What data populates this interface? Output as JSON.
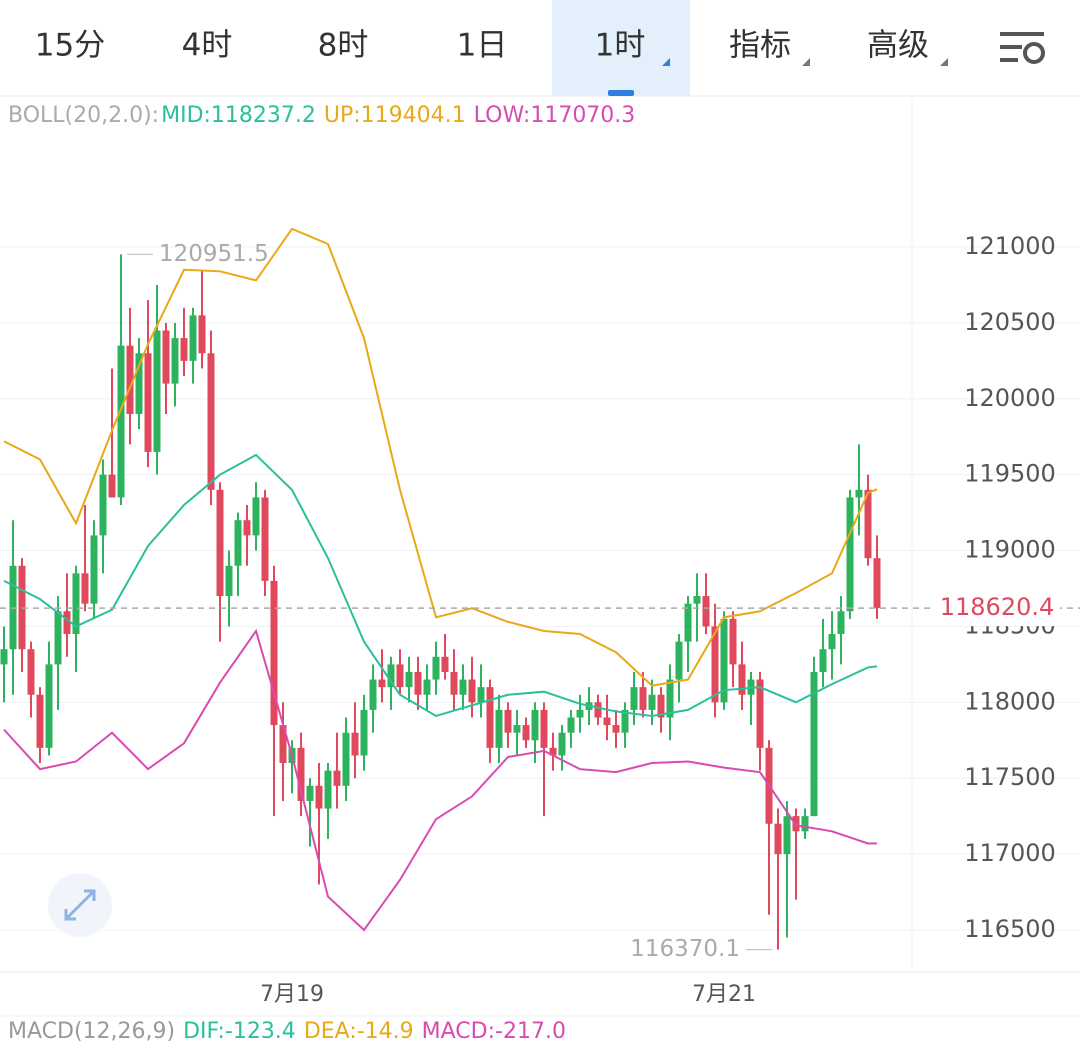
{
  "tabs": [
    {
      "label": "15分"
    },
    {
      "label": "4时"
    },
    {
      "label": "8时"
    },
    {
      "label": "1日"
    },
    {
      "label": "1时"
    },
    {
      "label": "指标"
    },
    {
      "label": "高级"
    }
  ],
  "active_tab": 4,
  "chart_data": {
    "type": "candlestick",
    "indicator_label": "BOLL(20,2.0):",
    "up_color": "#2db35d",
    "down_color": "#e0485b",
    "categories": [
      null,
      null,
      null,
      null,
      null,
      null,
      null,
      null,
      null,
      null,
      null,
      null,
      null,
      null,
      null,
      null,
      null,
      null,
      null,
      null,
      null,
      null,
      null,
      null,
      null,
      null,
      null,
      null,
      null,
      null,
      null,
      null,
      "7月19",
      null,
      null,
      null,
      null,
      null,
      null,
      null,
      null,
      null,
      null,
      null,
      null,
      null,
      null,
      null,
      null,
      null,
      null,
      null,
      null,
      null,
      null,
      null,
      null,
      null,
      null,
      null,
      null,
      null,
      null,
      null,
      null,
      null,
      null,
      null,
      null,
      null,
      null,
      null,
      null,
      null,
      null,
      null,
      null,
      null,
      null,
      null,
      "7月21",
      null,
      null,
      null,
      null,
      null,
      null,
      null,
      null,
      null,
      null,
      null,
      null,
      null,
      null,
      null,
      null,
      null
    ],
    "open": [
      118250,
      118350,
      118900,
      118350,
      118050,
      117700,
      118250,
      118600,
      118450,
      118850,
      118650,
      119100,
      119500,
      119350,
      120350,
      119900,
      120300,
      119650,
      120450,
      120100,
      120400,
      120250,
      120550,
      120300,
      119400,
      118700,
      118900,
      119200,
      119100,
      119350,
      118800,
      117850,
      117600,
      117700,
      117350,
      117450,
      117300,
      117550,
      117450,
      117800,
      117650,
      117950,
      118150,
      118100,
      118250,
      118100,
      118200,
      118050,
      118150,
      118300,
      118200,
      118050,
      118150,
      118000,
      118100,
      117700,
      117950,
      117800,
      117850,
      117750,
      117950,
      117700,
      117650,
      117800,
      117900,
      117950,
      118000,
      117900,
      117850,
      117800,
      117950,
      118100,
      117950,
      118050,
      117900,
      118150,
      118400,
      118650,
      118700,
      118500,
      118000,
      118550,
      118250,
      118050,
      118150,
      117700,
      117200,
      117000,
      117250,
      117150,
      117250,
      118200,
      118350,
      118450,
      118600,
      119350,
      119400,
      118950
    ],
    "high": [
      118500,
      119200,
      118950,
      118400,
      118100,
      118400,
      118700,
      118850,
      118900,
      119300,
      119200,
      119600,
      120200,
      120951.5,
      120600,
      120400,
      120650,
      120750,
      120500,
      120500,
      120600,
      120600,
      120850,
      120450,
      119450,
      119000,
      119250,
      119300,
      119450,
      119400,
      118900,
      118000,
      117750,
      117800,
      117500,
      117600,
      117600,
      117800,
      117900,
      118000,
      118050,
      118250,
      118350,
      118300,
      118350,
      118300,
      118300,
      118250,
      118400,
      118450,
      118350,
      118250,
      118300,
      118250,
      118150,
      118050,
      118000,
      117950,
      117900,
      118000,
      118000,
      117800,
      117850,
      117950,
      118050,
      118100,
      118050,
      118050,
      117950,
      118000,
      118200,
      118200,
      118150,
      118100,
      118250,
      118450,
      118700,
      118850,
      118850,
      118650,
      118600,
      118600,
      118400,
      118200,
      118200,
      117750,
      117300,
      117350,
      117300,
      117300,
      118300,
      118550,
      118600,
      118700,
      119400,
      119700,
      119500,
      119100
    ],
    "low": [
      118000,
      118050,
      118200,
      117900,
      117600,
      117650,
      117950,
      118300,
      118200,
      118600,
      118550,
      118850,
      119350,
      119300,
      119700,
      119800,
      119550,
      119500,
      119900,
      119950,
      120150,
      120100,
      120200,
      119300,
      118400,
      118500,
      118700,
      118900,
      119000,
      118700,
      117250,
      117350,
      117400,
      117250,
      117050,
      116800,
      117100,
      117300,
      117350,
      117500,
      117550,
      117800,
      118000,
      117950,
      118050,
      118000,
      117950,
      117950,
      118050,
      118150,
      117950,
      117950,
      117900,
      117900,
      117600,
      117600,
      117700,
      117650,
      117700,
      117600,
      117250,
      117550,
      117550,
      117700,
      117800,
      117850,
      117850,
      117750,
      117700,
      117700,
      117850,
      117900,
      117850,
      117800,
      117750,
      118000,
      118200,
      118400,
      118450,
      117900,
      117950,
      118100,
      117950,
      117850,
      117550,
      116600,
      116370.1,
      116450,
      116700,
      117100,
      117250,
      118100,
      118150,
      118250,
      118550,
      119100,
      118900,
      118550
    ],
    "close": [
      118350,
      118900,
      118350,
      118050,
      117700,
      118250,
      118600,
      118450,
      118850,
      118650,
      119100,
      119500,
      119350,
      120350,
      119900,
      120300,
      119650,
      120450,
      120100,
      120400,
      120250,
      120550,
      120300,
      119400,
      118700,
      118900,
      119200,
      119100,
      119350,
      118800,
      117850,
      117600,
      117700,
      117350,
      117450,
      117300,
      117550,
      117450,
      117800,
      117650,
      117950,
      118150,
      118100,
      118250,
      118100,
      118200,
      118050,
      118150,
      118300,
      118200,
      118050,
      118150,
      118000,
      118100,
      117700,
      117950,
      117800,
      117850,
      117750,
      117950,
      117700,
      117650,
      117800,
      117900,
      117950,
      118000,
      117900,
      117850,
      117800,
      117950,
      118100,
      117950,
      118050,
      117900,
      118150,
      118400,
      118650,
      118700,
      118500,
      118000,
      118550,
      118250,
      118050,
      118150,
      117700,
      117200,
      117000,
      117250,
      117150,
      117250,
      118200,
      118350,
      118450,
      118600,
      119350,
      119400,
      118950,
      118620.4
    ],
    "boll": {
      "x": [
        0,
        4,
        8,
        12,
        16,
        20,
        24,
        28,
        32,
        36,
        40,
        44,
        48,
        52,
        56,
        60,
        64,
        68,
        72,
        76,
        80,
        84,
        88,
        92,
        96,
        97
      ],
      "series": [
        {
          "name": "MID:118237.2",
          "color": "#2bbf9c",
          "values": [
            118800,
            118680,
            118500,
            118610,
            119030,
            119300,
            119500,
            119630,
            119400,
            118950,
            118400,
            118050,
            117910,
            117980,
            118050,
            118070,
            117990,
            117940,
            117910,
            117950,
            118080,
            118100,
            118000,
            118120,
            118230,
            118237.2
          ]
        },
        {
          "name": "UP:119404.1",
          "color": "#e8a917",
          "values": [
            119720,
            119600,
            119180,
            119790,
            120360,
            120850,
            120840,
            120780,
            121120,
            121020,
            120400,
            119400,
            118560,
            118620,
            118530,
            118470,
            118450,
            118330,
            118110,
            118150,
            118560,
            118600,
            118720,
            118850,
            119380,
            119404.1
          ]
        },
        {
          "name": "LOW:117070.3",
          "color": "#d94bb0",
          "values": [
            117820,
            117560,
            117610,
            117800,
            117560,
            117730,
            118130,
            118470,
            117650,
            116720,
            116500,
            116830,
            117230,
            117380,
            117640,
            117680,
            117560,
            117540,
            117600,
            117610,
            117570,
            117540,
            117190,
            117150,
            117070,
            117070.3
          ]
        }
      ]
    },
    "ylim": [
      116223,
      121982
    ],
    "yticks": [
      116500,
      117000,
      117500,
      118000,
      118500,
      119000,
      119500,
      120000,
      120500,
      121000
    ],
    "grid": true,
    "last_price": 118620.4,
    "annotations": [
      {
        "text": "120951.5",
        "index": 13
      },
      {
        "text": "116370.1",
        "index": 86
      }
    ],
    "macd": {
      "label": "MACD(12,26,9)",
      "items": [
        {
          "text": "DIF:-123.4",
          "color": "#2bbf9c"
        },
        {
          "text": "DEA:-14.9",
          "color": "#e8a917"
        },
        {
          "text": "MACD:-217.0",
          "color": "#d94bb0"
        }
      ]
    }
  }
}
